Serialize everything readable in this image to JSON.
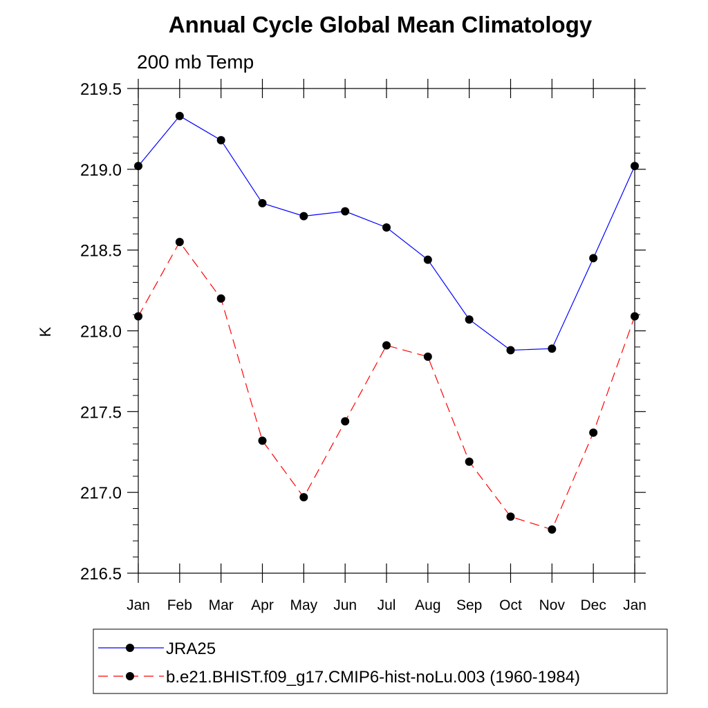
{
  "chart_data": {
    "type": "line",
    "title": "Annual Cycle Global Mean Climatology",
    "subtitle": "200 mb Temp",
    "xlabel": "",
    "ylabel": "K",
    "categories": [
      "Jan",
      "Feb",
      "Mar",
      "Apr",
      "May",
      "Jun",
      "Jul",
      "Aug",
      "Sep",
      "Oct",
      "Nov",
      "Dec",
      "Jan"
    ],
    "ylim": [
      216.5,
      219.5
    ],
    "yticks": [
      "216.5",
      "217.0",
      "217.5",
      "218.0",
      "218.5",
      "219.0",
      "219.5"
    ],
    "grid": false,
    "legend_position": "bottom",
    "series": [
      {
        "name": "JRA25",
        "color": "#0000ff",
        "line_style": "solid",
        "marker": "filled-circle",
        "values": [
          219.02,
          219.33,
          219.18,
          218.79,
          218.71,
          218.74,
          218.64,
          218.44,
          218.07,
          217.88,
          217.89,
          218.45,
          219.02
        ]
      },
      {
        "name": "b.e21.BHIST.f09_g17.CMIP6-hist-noLu.003 (1960-1984)",
        "color": "#ff0000",
        "line_style": "dashed",
        "marker": "filled-circle",
        "values": [
          218.09,
          218.55,
          218.2,
          217.32,
          216.97,
          217.44,
          217.91,
          217.84,
          217.19,
          216.85,
          216.77,
          217.37,
          218.09
        ]
      }
    ]
  }
}
